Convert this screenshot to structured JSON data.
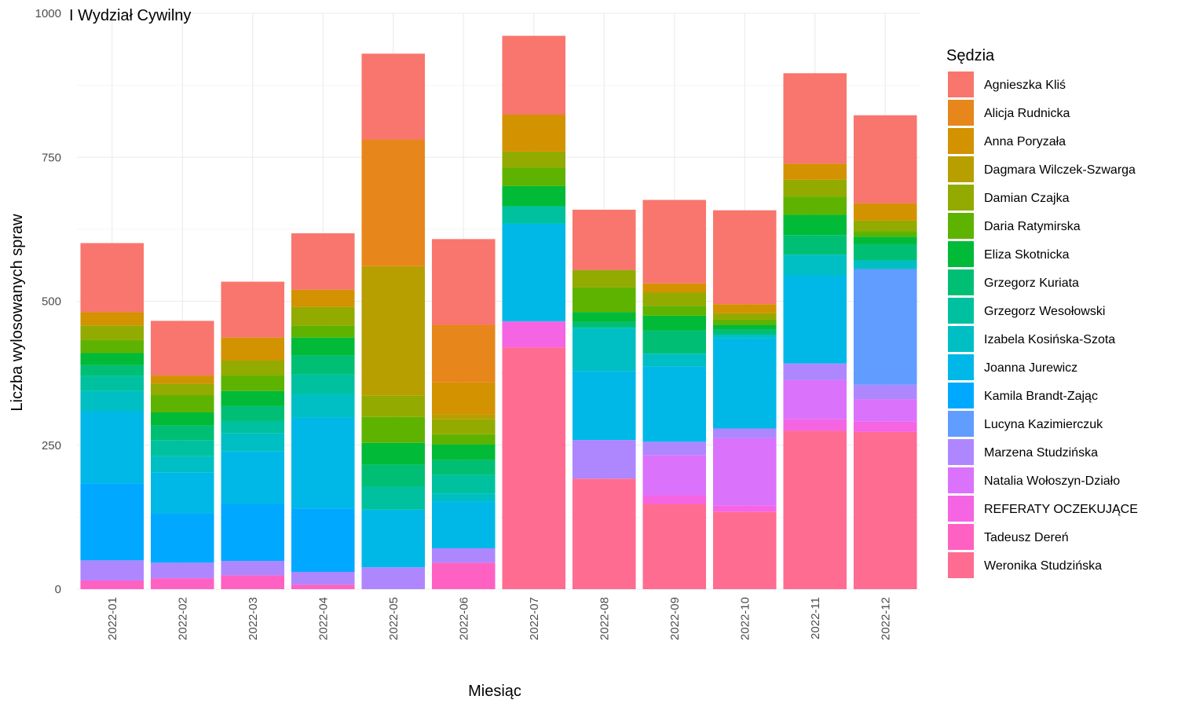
{
  "chart_data": {
    "type": "bar",
    "stacked": true,
    "title": "I Wydział Cywilny",
    "xlabel": "Miesiąc",
    "ylabel": "Liczba wylosowanych spraw",
    "ylim": [
      0,
      1000
    ],
    "yticks": [
      0,
      250,
      500,
      750,
      1000
    ],
    "grid": true,
    "legend_title": "Sędzia",
    "legend_position": "right",
    "categories": [
      "2022-01",
      "2022-02",
      "2022-03",
      "2022-04",
      "2022-05",
      "2022-06",
      "2022-07",
      "2022-08",
      "2022-09",
      "2022-10",
      "2022-11",
      "2022-12"
    ],
    "series": [
      {
        "name": "Agnieszka Kliś",
        "color": "#F8766D",
        "values": [
          120,
          95,
          97,
          98,
          149,
          149,
          137,
          105,
          145,
          163,
          157,
          153
        ]
      },
      {
        "name": "Alicja Rudnicka",
        "color": "#E7861B",
        "values": [
          0,
          0,
          0,
          0,
          220,
          100,
          0,
          0,
          0,
          0,
          0,
          0
        ]
      },
      {
        "name": "Anna Poryzała",
        "color": "#D39200",
        "values": [
          23,
          14,
          40,
          30,
          0,
          56,
          64,
          0,
          16,
          16,
          28,
          30
        ]
      },
      {
        "name": "Dagmara Wilczek-Szwarga",
        "color": "#B79F00",
        "values": [
          0,
          0,
          0,
          0,
          225,
          8,
          0,
          0,
          0,
          0,
          0,
          0
        ]
      },
      {
        "name": "Damian Czajka",
        "color": "#93AA00",
        "values": [
          25,
          20,
          26,
          32,
          37,
          26,
          28,
          30,
          23,
          11,
          29,
          18
        ]
      },
      {
        "name": "Daria Ratymirska",
        "color": "#5EB300",
        "values": [
          23,
          30,
          27,
          21,
          45,
          18,
          32,
          43,
          17,
          9,
          32,
          10
        ]
      },
      {
        "name": "Eliza Skotnicka",
        "color": "#00BA38",
        "values": [
          21,
          23,
          26,
          31,
          38,
          27,
          35,
          17,
          26,
          8,
          35,
          13
        ]
      },
      {
        "name": "Grzegorz Kuriata",
        "color": "#00BF74",
        "values": [
          18,
          25,
          26,
          33,
          38,
          26,
          0,
          10,
          40,
          9,
          34,
          28
        ]
      },
      {
        "name": "Grzegorz Wesołowski",
        "color": "#00C19F",
        "values": [
          27,
          28,
          21,
          34,
          40,
          32,
          30,
          0,
          0,
          0,
          0,
          0
        ]
      },
      {
        "name": "Izabela Kosińska-Szota",
        "color": "#00BFC4",
        "values": [
          35,
          28,
          32,
          41,
          0,
          14,
          0,
          75,
          22,
          6,
          36,
          15
        ]
      },
      {
        "name": "Joanna Jurewicz",
        "color": "#00B8E7",
        "values": [
          125,
          72,
          91,
          158,
          100,
          81,
          170,
          120,
          131,
          157,
          153,
          0
        ]
      },
      {
        "name": "Kamila Brandt-Zając",
        "color": "#00A9FF",
        "values": [
          134,
          85,
          99,
          110,
          0,
          0,
          0,
          0,
          0,
          0,
          0,
          0
        ]
      },
      {
        "name": "Lucyna Kazimierczuk",
        "color": "#619CFF",
        "values": [
          0,
          0,
          0,
          0,
          0,
          0,
          0,
          0,
          0,
          0,
          0,
          201
        ]
      },
      {
        "name": "Marzena Studzińska",
        "color": "#AE87FF",
        "values": [
          35,
          27,
          25,
          22,
          38,
          25,
          0,
          67,
          23,
          17,
          29,
          25
        ]
      },
      {
        "name": "Natalia Wołoszyn-Działo",
        "color": "#DB72FB",
        "values": [
          0,
          0,
          0,
          0,
          0,
          0,
          0,
          0,
          70,
          117,
          68,
          39
        ]
      },
      {
        "name": "REFERATY OCZEKUJĄCE",
        "color": "#F564E3",
        "values": [
          0,
          0,
          0,
          0,
          0,
          0,
          45,
          0,
          15,
          11,
          20,
          18
        ]
      },
      {
        "name": "Tadeusz Dereń",
        "color": "#FF61C3",
        "values": [
          15,
          19,
          24,
          8,
          0,
          46,
          0,
          0,
          0,
          0,
          0,
          0
        ]
      },
      {
        "name": "Weronika Studzińska",
        "color": "#FF6C91",
        "values": [
          0,
          0,
          0,
          0,
          0,
          0,
          420,
          192,
          148,
          134,
          275,
          273
        ]
      }
    ]
  }
}
